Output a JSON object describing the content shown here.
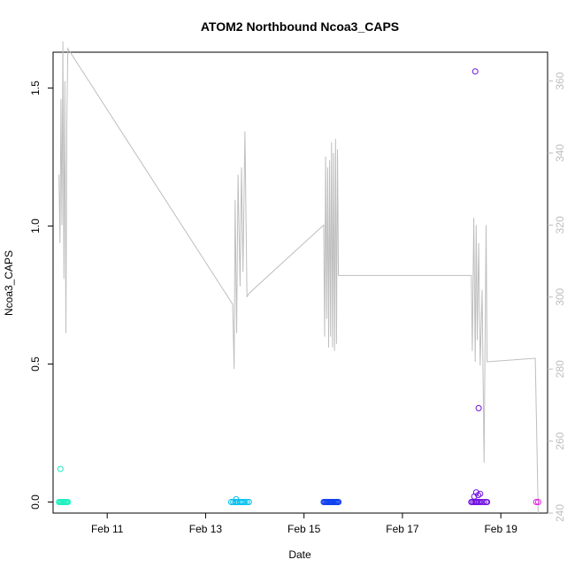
{
  "chart_data": {
    "type": "scatter",
    "title": "ATOM2 Northbound Ncoa3_CAPS",
    "xlabel": "Date",
    "ylabel": "Ncoa3_CAPS",
    "x_ticks": [
      "Feb 11",
      "Feb 13",
      "Feb 15",
      "Feb 17",
      "Feb 19"
    ],
    "x_range_days": [
      9.9,
      19.95
    ],
    "ylim": [
      -0.04,
      1.63
    ],
    "y_ticks": [
      "0.0",
      "0.5",
      "1.0",
      "1.5"
    ],
    "y2lim": [
      240,
      368
    ],
    "y2_ticks": [
      "240",
      "260",
      "280",
      "300",
      "320",
      "340",
      "360"
    ],
    "grid": false,
    "colors": {
      "line": "#bebebe",
      "groups": [
        "#20f0c0",
        "#00c0f0",
        "#1040f0",
        "#7010e0",
        "#e020e0"
      ]
    },
    "line_series": {
      "axis": "right",
      "x": [
        10.02,
        10.04,
        10.06,
        10.08,
        10.1,
        10.12,
        10.14,
        10.16,
        10.18,
        10.2,
        13.55,
        13.58,
        13.6,
        13.63,
        13.66,
        13.7,
        13.73,
        13.76,
        13.8,
        13.84,
        13.88,
        15.4,
        15.42,
        15.44,
        15.46,
        15.48,
        15.5,
        15.52,
        15.54,
        15.56,
        15.58,
        15.6,
        15.62,
        15.64,
        15.66,
        15.68,
        15.7,
        18.4,
        18.42,
        18.45,
        18.48,
        18.5,
        18.52,
        18.55,
        18.58,
        18.62,
        18.66,
        18.7,
        18.72,
        19.7,
        19.76
      ],
      "y": [
        334,
        315,
        355,
        320,
        371,
        305,
        360,
        290,
        350,
        369,
        298,
        280,
        327,
        290,
        334,
        303,
        336,
        307,
        346,
        300,
        301,
        320,
        289,
        339,
        294,
        336,
        286,
        338,
        289,
        343,
        286,
        340,
        285,
        344,
        287,
        341,
        306,
        306,
        285,
        322,
        282,
        320,
        288,
        315,
        281,
        302,
        254,
        320,
        282,
        283,
        240
      ],
      "name": ""
    },
    "point_groups": [
      {
        "name": "",
        "x": [
          10.02,
          10.04,
          10.06,
          10.08,
          10.1,
          10.12,
          10.14,
          10.16,
          10.18,
          10.2,
          10.05
        ],
        "y": [
          0,
          0,
          0,
          0,
          0,
          0,
          0,
          0,
          0,
          0,
          0.12
        ]
      },
      {
        "name": "",
        "x": [
          13.52,
          13.56,
          13.6,
          13.63,
          13.66,
          13.7,
          13.73,
          13.76,
          13.8,
          13.84,
          13.88,
          13.62
        ],
        "y": [
          0,
          0,
          0,
          0,
          0,
          0,
          0,
          0,
          0,
          0,
          0,
          0.01
        ]
      },
      {
        "name": "",
        "x": [
          15.4,
          15.42,
          15.44,
          15.46,
          15.48,
          15.5,
          15.52,
          15.54,
          15.56,
          15.58,
          15.6,
          15.62,
          15.64,
          15.66,
          15.68,
          15.7
        ],
        "y": [
          0,
          0,
          0,
          0,
          0,
          0,
          0,
          0,
          0,
          0,
          0,
          0,
          0,
          0,
          0,
          0
        ]
      },
      {
        "name": "",
        "x": [
          18.4,
          18.42,
          18.45,
          18.48,
          18.5,
          18.52,
          18.55,
          18.58,
          18.62,
          18.66,
          18.7,
          18.72,
          18.46,
          18.5,
          18.54,
          18.58,
          18.48,
          18.55
        ],
        "y": [
          0,
          0,
          0,
          0,
          0,
          0,
          0,
          0,
          0,
          0,
          0,
          0,
          0.02,
          0.035,
          0.025,
          0.03,
          1.56,
          0.34
        ]
      },
      {
        "name": "",
        "x": [
          19.72,
          19.76
        ],
        "y": [
          0,
          0
        ]
      }
    ]
  }
}
